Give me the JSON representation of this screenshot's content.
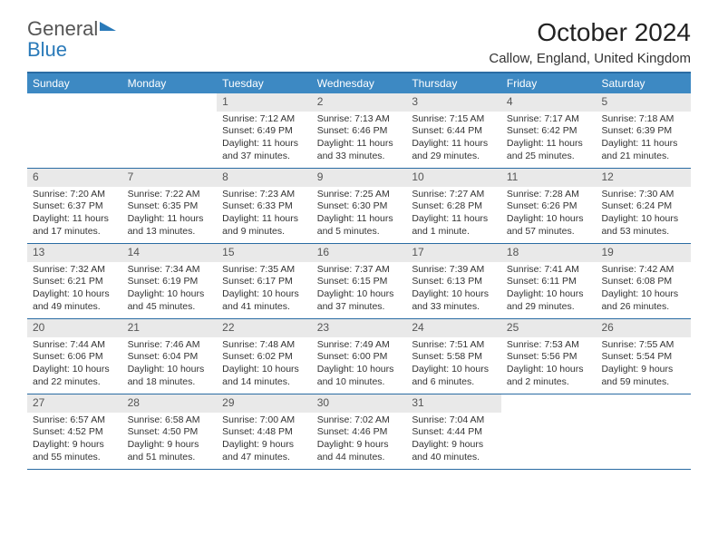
{
  "logo": {
    "line1": "General",
    "line2": "Blue"
  },
  "title": "October 2024",
  "subtitle": "Callow, England, United Kingdom",
  "dayNames": [
    "Sunday",
    "Monday",
    "Tuesday",
    "Wednesday",
    "Thursday",
    "Friday",
    "Saturday"
  ],
  "colors": {
    "headerBg": "#3d89c3",
    "borderTop": "#2a6ca3",
    "dayNumBg": "#e9e9e9"
  },
  "weeks": [
    [
      null,
      null,
      {
        "n": "1",
        "sr": "Sunrise: 7:12 AM",
        "ss": "Sunset: 6:49 PM",
        "dl": "Daylight: 11 hours and 37 minutes."
      },
      {
        "n": "2",
        "sr": "Sunrise: 7:13 AM",
        "ss": "Sunset: 6:46 PM",
        "dl": "Daylight: 11 hours and 33 minutes."
      },
      {
        "n": "3",
        "sr": "Sunrise: 7:15 AM",
        "ss": "Sunset: 6:44 PM",
        "dl": "Daylight: 11 hours and 29 minutes."
      },
      {
        "n": "4",
        "sr": "Sunrise: 7:17 AM",
        "ss": "Sunset: 6:42 PM",
        "dl": "Daylight: 11 hours and 25 minutes."
      },
      {
        "n": "5",
        "sr": "Sunrise: 7:18 AM",
        "ss": "Sunset: 6:39 PM",
        "dl": "Daylight: 11 hours and 21 minutes."
      }
    ],
    [
      {
        "n": "6",
        "sr": "Sunrise: 7:20 AM",
        "ss": "Sunset: 6:37 PM",
        "dl": "Daylight: 11 hours and 17 minutes."
      },
      {
        "n": "7",
        "sr": "Sunrise: 7:22 AM",
        "ss": "Sunset: 6:35 PM",
        "dl": "Daylight: 11 hours and 13 minutes."
      },
      {
        "n": "8",
        "sr": "Sunrise: 7:23 AM",
        "ss": "Sunset: 6:33 PM",
        "dl": "Daylight: 11 hours and 9 minutes."
      },
      {
        "n": "9",
        "sr": "Sunrise: 7:25 AM",
        "ss": "Sunset: 6:30 PM",
        "dl": "Daylight: 11 hours and 5 minutes."
      },
      {
        "n": "10",
        "sr": "Sunrise: 7:27 AM",
        "ss": "Sunset: 6:28 PM",
        "dl": "Daylight: 11 hours and 1 minute."
      },
      {
        "n": "11",
        "sr": "Sunrise: 7:28 AM",
        "ss": "Sunset: 6:26 PM",
        "dl": "Daylight: 10 hours and 57 minutes."
      },
      {
        "n": "12",
        "sr": "Sunrise: 7:30 AM",
        "ss": "Sunset: 6:24 PM",
        "dl": "Daylight: 10 hours and 53 minutes."
      }
    ],
    [
      {
        "n": "13",
        "sr": "Sunrise: 7:32 AM",
        "ss": "Sunset: 6:21 PM",
        "dl": "Daylight: 10 hours and 49 minutes."
      },
      {
        "n": "14",
        "sr": "Sunrise: 7:34 AM",
        "ss": "Sunset: 6:19 PM",
        "dl": "Daylight: 10 hours and 45 minutes."
      },
      {
        "n": "15",
        "sr": "Sunrise: 7:35 AM",
        "ss": "Sunset: 6:17 PM",
        "dl": "Daylight: 10 hours and 41 minutes."
      },
      {
        "n": "16",
        "sr": "Sunrise: 7:37 AM",
        "ss": "Sunset: 6:15 PM",
        "dl": "Daylight: 10 hours and 37 minutes."
      },
      {
        "n": "17",
        "sr": "Sunrise: 7:39 AM",
        "ss": "Sunset: 6:13 PM",
        "dl": "Daylight: 10 hours and 33 minutes."
      },
      {
        "n": "18",
        "sr": "Sunrise: 7:41 AM",
        "ss": "Sunset: 6:11 PM",
        "dl": "Daylight: 10 hours and 29 minutes."
      },
      {
        "n": "19",
        "sr": "Sunrise: 7:42 AM",
        "ss": "Sunset: 6:08 PM",
        "dl": "Daylight: 10 hours and 26 minutes."
      }
    ],
    [
      {
        "n": "20",
        "sr": "Sunrise: 7:44 AM",
        "ss": "Sunset: 6:06 PM",
        "dl": "Daylight: 10 hours and 22 minutes."
      },
      {
        "n": "21",
        "sr": "Sunrise: 7:46 AM",
        "ss": "Sunset: 6:04 PM",
        "dl": "Daylight: 10 hours and 18 minutes."
      },
      {
        "n": "22",
        "sr": "Sunrise: 7:48 AM",
        "ss": "Sunset: 6:02 PM",
        "dl": "Daylight: 10 hours and 14 minutes."
      },
      {
        "n": "23",
        "sr": "Sunrise: 7:49 AM",
        "ss": "Sunset: 6:00 PM",
        "dl": "Daylight: 10 hours and 10 minutes."
      },
      {
        "n": "24",
        "sr": "Sunrise: 7:51 AM",
        "ss": "Sunset: 5:58 PM",
        "dl": "Daylight: 10 hours and 6 minutes."
      },
      {
        "n": "25",
        "sr": "Sunrise: 7:53 AM",
        "ss": "Sunset: 5:56 PM",
        "dl": "Daylight: 10 hours and 2 minutes."
      },
      {
        "n": "26",
        "sr": "Sunrise: 7:55 AM",
        "ss": "Sunset: 5:54 PM",
        "dl": "Daylight: 9 hours and 59 minutes."
      }
    ],
    [
      {
        "n": "27",
        "sr": "Sunrise: 6:57 AM",
        "ss": "Sunset: 4:52 PM",
        "dl": "Daylight: 9 hours and 55 minutes."
      },
      {
        "n": "28",
        "sr": "Sunrise: 6:58 AM",
        "ss": "Sunset: 4:50 PM",
        "dl": "Daylight: 9 hours and 51 minutes."
      },
      {
        "n": "29",
        "sr": "Sunrise: 7:00 AM",
        "ss": "Sunset: 4:48 PM",
        "dl": "Daylight: 9 hours and 47 minutes."
      },
      {
        "n": "30",
        "sr": "Sunrise: 7:02 AM",
        "ss": "Sunset: 4:46 PM",
        "dl": "Daylight: 9 hours and 44 minutes."
      },
      {
        "n": "31",
        "sr": "Sunrise: 7:04 AM",
        "ss": "Sunset: 4:44 PM",
        "dl": "Daylight: 9 hours and 40 minutes."
      },
      null,
      null
    ]
  ]
}
